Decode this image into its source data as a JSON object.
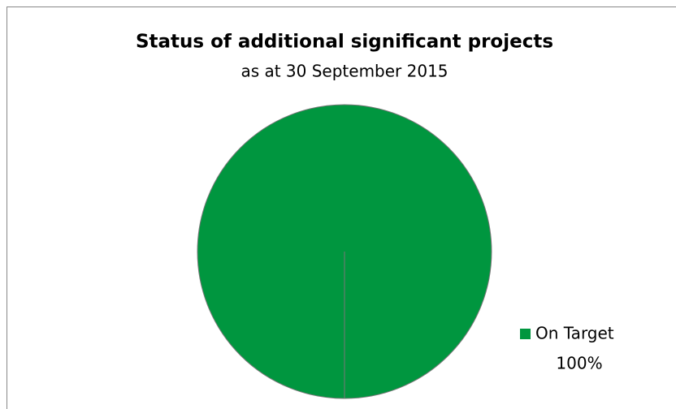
{
  "chart_data": {
    "type": "pie",
    "title": "Status of additional significant projects",
    "subtitle": "as at 30 September 2015",
    "categories": [
      "On Target"
    ],
    "values": [
      100
    ],
    "value_labels": [
      "100%"
    ],
    "colors": [
      "#00963f"
    ],
    "legend": "right"
  }
}
